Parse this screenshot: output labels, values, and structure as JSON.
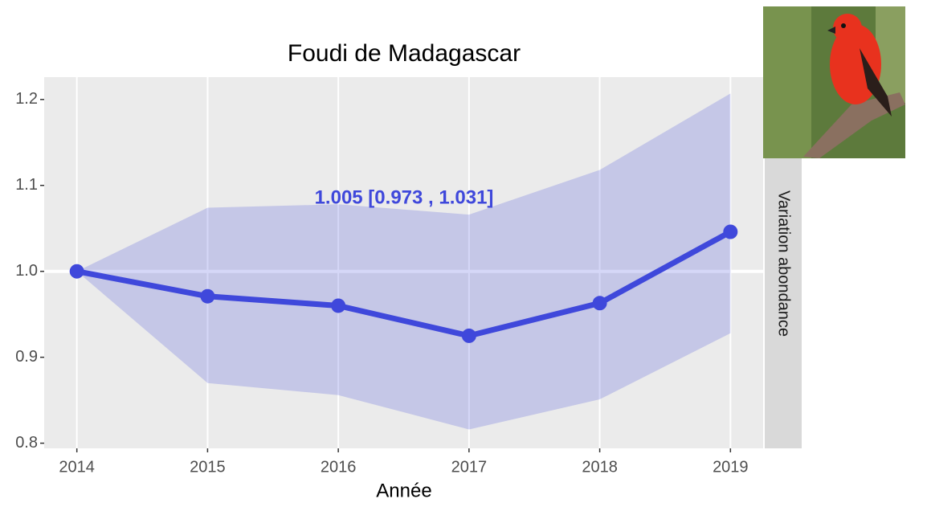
{
  "chart_data": {
    "type": "line",
    "title": "Foudi de Madagascar",
    "x_label": "Année",
    "strip_label": "Variation abondance",
    "annotation": "1.005  [0.973 , 1.031]",
    "x": [
      2014,
      2015,
      2016,
      2017,
      2018,
      2019
    ],
    "values": [
      1.0,
      0.971,
      0.96,
      0.925,
      0.963,
      1.046
    ],
    "lower": [
      1.0,
      0.87,
      0.856,
      0.816,
      0.851,
      0.928
    ],
    "upper": [
      1.0,
      1.074,
      1.078,
      1.066,
      1.118,
      1.207
    ],
    "color": "#3f48db",
    "band_color": "#3f48db",
    "reference_line": 1.0,
    "xlim": [
      2013.75,
      2019.25
    ],
    "xticks": [
      2014,
      2015,
      2016,
      2017,
      2018,
      2019
    ],
    "ylim": [
      0.794,
      1.226
    ],
    "yticks": [
      0.8,
      0.9,
      {
        "value": 1.0,
        "label": "1.0"
      },
      1.1,
      1.2
    ],
    "grid": "x"
  }
}
